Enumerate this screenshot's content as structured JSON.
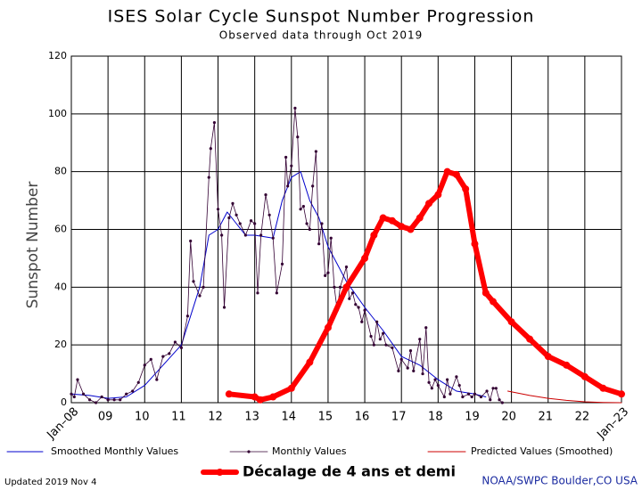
{
  "chart_data": {
    "type": "line",
    "title": "ISES Solar Cycle Sunspot Number Progression",
    "subtitle": "Observed data through Oct 2019",
    "y_label": "Sunspot Number",
    "xlim": [
      2008,
      2023
    ],
    "xticks": [
      {
        "value": 2008,
        "label": "Jan–08"
      },
      {
        "value": 2009,
        "label": "09"
      },
      {
        "value": 2010,
        "label": "10"
      },
      {
        "value": 2011,
        "label": "11"
      },
      {
        "value": 2012,
        "label": "12"
      },
      {
        "value": 2013,
        "label": "13"
      },
      {
        "value": 2014,
        "label": "14"
      },
      {
        "value": 2015,
        "label": "15"
      },
      {
        "value": 2016,
        "label": "16"
      },
      {
        "value": 2017,
        "label": "17"
      },
      {
        "value": 2018,
        "label": "18"
      },
      {
        "value": 2019,
        "label": "19"
      },
      {
        "value": 2020,
        "label": "20"
      },
      {
        "value": 2021,
        "label": "21"
      },
      {
        "value": 2022,
        "label": "22"
      },
      {
        "value": 2023,
        "label": "Jan–23"
      }
    ],
    "ylim": [
      0,
      120
    ],
    "yticks": [
      0,
      20,
      40,
      60,
      80,
      100,
      120
    ],
    "grid": true,
    "series": [
      {
        "name": "Smoothed Monthly Values",
        "color": "#0000cc",
        "x": [
          2008.0,
          2008.5,
          2009.0,
          2009.5,
          2010.0,
          2010.5,
          2011.0,
          2011.5,
          2011.75,
          2012.0,
          2012.25,
          2012.5,
          2012.75,
          2013.0,
          2013.5,
          2013.75,
          2014.0,
          2014.25,
          2014.5,
          2014.75,
          2015.0,
          2015.5,
          2016.0,
          2016.5,
          2017.0,
          2017.5,
          2018.0,
          2018.5,
          2019.0,
          2019.3
        ],
        "values": [
          3,
          2.5,
          1.5,
          2,
          6,
          13,
          20,
          40,
          58,
          60,
          66,
          62,
          58,
          58,
          57,
          70,
          78,
          80,
          70,
          64,
          54,
          42,
          33,
          25,
          16,
          13,
          8,
          4,
          3,
          2
        ]
      },
      {
        "name": "Monthly Values",
        "color": "#330033",
        "markers": true,
        "x": [
          2008.0,
          2008.08,
          2008.17,
          2008.33,
          2008.5,
          2008.67,
          2008.83,
          2009.0,
          2009.17,
          2009.33,
          2009.5,
          2009.67,
          2009.83,
          2010.0,
          2010.17,
          2010.33,
          2010.5,
          2010.67,
          2010.83,
          2011.0,
          2011.17,
          2011.25,
          2011.33,
          2011.5,
          2011.6,
          2011.75,
          2011.8,
          2011.9,
          2012.0,
          2012.1,
          2012.17,
          2012.3,
          2012.4,
          2012.5,
          2012.6,
          2012.75,
          2012.9,
          2013.0,
          2013.08,
          2013.17,
          2013.3,
          2013.4,
          2013.5,
          2013.6,
          2013.75,
          2013.85,
          2013.9,
          2014.0,
          2014.1,
          2014.17,
          2014.25,
          2014.33,
          2014.42,
          2014.5,
          2014.58,
          2014.67,
          2014.75,
          2014.83,
          2014.92,
          2015.0,
          2015.08,
          2015.17,
          2015.25,
          2015.33,
          2015.5,
          2015.58,
          2015.67,
          2015.75,
          2015.83,
          2015.92,
          2016.0,
          2016.17,
          2016.25,
          2016.33,
          2016.42,
          2016.5,
          2016.58,
          2016.75,
          2016.92,
          2017.0,
          2017.17,
          2017.25,
          2017.33,
          2017.5,
          2017.58,
          2017.67,
          2017.75,
          2017.83,
          2017.92,
          2018.0,
          2018.17,
          2018.25,
          2018.33,
          2018.5,
          2018.58,
          2018.67,
          2018.83,
          2018.92,
          2019.0,
          2019.17,
          2019.33,
          2019.42,
          2019.5,
          2019.58,
          2019.67,
          2019.75
        ],
        "values": [
          3,
          2,
          8,
          3,
          1,
          0,
          2,
          1,
          1,
          1,
          3,
          4,
          7,
          13,
          15,
          8,
          16,
          17,
          21,
          19,
          30,
          56,
          42,
          37,
          40,
          78,
          88,
          97,
          67,
          58,
          33,
          64,
          69,
          65,
          62,
          58,
          63,
          62,
          38,
          58,
          72,
          65,
          57,
          38,
          48,
          85,
          75,
          82,
          102,
          92,
          67,
          68,
          62,
          60,
          75,
          87,
          55,
          62,
          44,
          45,
          57,
          40,
          32,
          40,
          47,
          36,
          38,
          34,
          33,
          28,
          32,
          23,
          20,
          28,
          22,
          24,
          20,
          19,
          11,
          15,
          12,
          18,
          11,
          22,
          10,
          26,
          7,
          5,
          8,
          6,
          2,
          8,
          3,
          9,
          6,
          2,
          3,
          2,
          3,
          2,
          4,
          1,
          5,
          5,
          1,
          0
        ]
      },
      {
        "name": "Predicted Values (Smoothed)",
        "color": "#cc0000",
        "x": [
          2019.9,
          2020.5,
          2021.0,
          2021.5,
          2022.0,
          2022.5,
          2023.0
        ],
        "values": [
          4,
          2.5,
          1.5,
          0.8,
          0.3,
          0.1,
          0
        ]
      },
      {
        "name": "Décalage de 4 ans et demi",
        "color": "#ff0000",
        "markers": true,
        "x": [
          2012.3,
          2013.0,
          2013.15,
          2013.5,
          2014.0,
          2014.5,
          2015.0,
          2015.5,
          2016.0,
          2016.25,
          2016.5,
          2016.75,
          2017.0,
          2017.25,
          2017.5,
          2017.75,
          2018.0,
          2018.25,
          2018.5,
          2018.75,
          2019.0,
          2019.3,
          2019.5,
          2020.0,
          2020.5,
          2021.0,
          2021.5,
          2022.0,
          2022.5,
          2023.0
        ],
        "values": [
          3,
          2,
          1,
          2,
          5,
          14,
          26,
          40,
          50,
          58,
          64,
          63,
          61,
          60,
          64,
          69,
          72,
          80,
          79,
          74,
          55,
          38,
          35,
          28,
          22,
          16,
          13,
          9,
          5,
          3
        ]
      }
    ],
    "footer_left": "Updated 2019 Nov  4",
    "footer_right": "NOAA/SWPC Boulder,CO USA"
  }
}
